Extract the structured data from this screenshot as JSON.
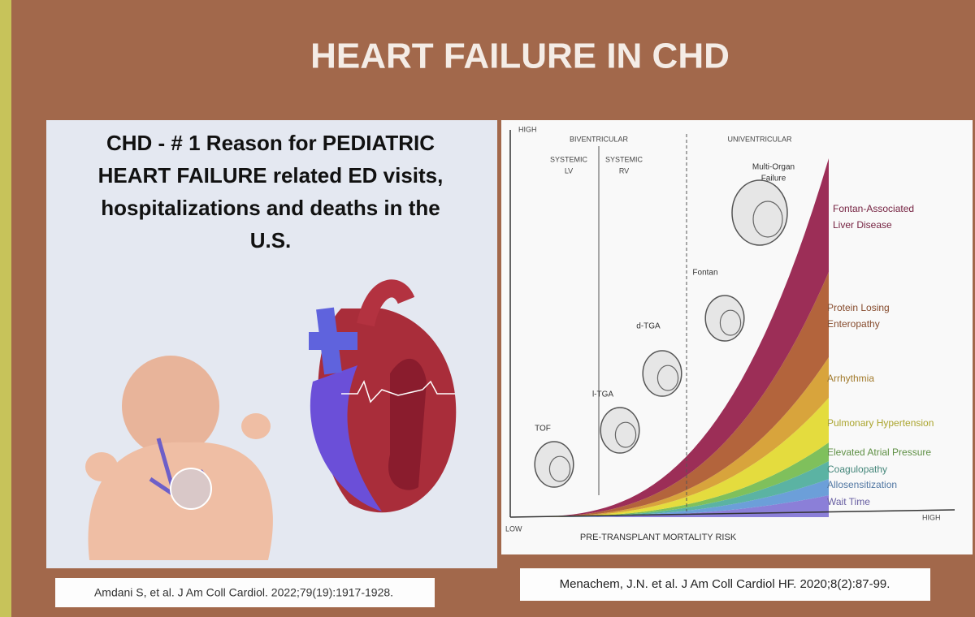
{
  "title": "HEART FAILURE IN CHD",
  "left_panel": {
    "heading": [
      "CHD - # 1 Reason for PEDIATRIC",
      "HEART FAILURE related ED visits,",
      "hospitalizations and deaths in the",
      "U.S."
    ],
    "citation": "Amdani S, et al. J Am Coll Cardiol. 2022;79(19):1917-1928."
  },
  "right_panel": {
    "y_high": "HIGH",
    "x_low": "LOW",
    "x_high": "HIGH",
    "x_axis_label": "PRE-TRANSPLANT MORTALITY RISK",
    "groups": [
      "BIVENTRICULAR",
      "UNIVENTRICULAR"
    ],
    "subgroups": [
      [
        "SYSTEMIC",
        "LV"
      ],
      [
        "SYSTEMIC",
        "RV"
      ]
    ],
    "lesions": [
      [
        "TOF"
      ],
      [
        "l-TGA"
      ],
      [
        "d-TGA"
      ],
      [
        "Fontan"
      ],
      [
        "Multi-Organ",
        "Failure"
      ]
    ],
    "bands": [
      {
        "label": [
          "Wait Time"
        ],
        "color": "#8b7fd8"
      },
      {
        "label": [
          "Allosensitization"
        ],
        "color": "#6c9fd9"
      },
      {
        "label": [
          "Coagulopathy"
        ],
        "color": "#5bb3a3"
      },
      {
        "label": [
          "Elevated Atrial Pressure"
        ],
        "color": "#7fc05c"
      },
      {
        "label": [
          "Pulmonary Hypertension"
        ],
        "color": "#e4dc3e"
      },
      {
        "label": [
          "Arrhythmia"
        ],
        "color": "#d8a43c"
      },
      {
        "label": [
          "Protein Losing",
          "Enteropathy"
        ],
        "color": "#b3643c"
      },
      {
        "label": [
          "Fontan-Associated",
          "Liver Disease"
        ],
        "color": "#9c2e57"
      }
    ],
    "citation": "Menachem, J.N. et al. J Am Coll Cardiol HF. 2020;8(2):87-99."
  }
}
